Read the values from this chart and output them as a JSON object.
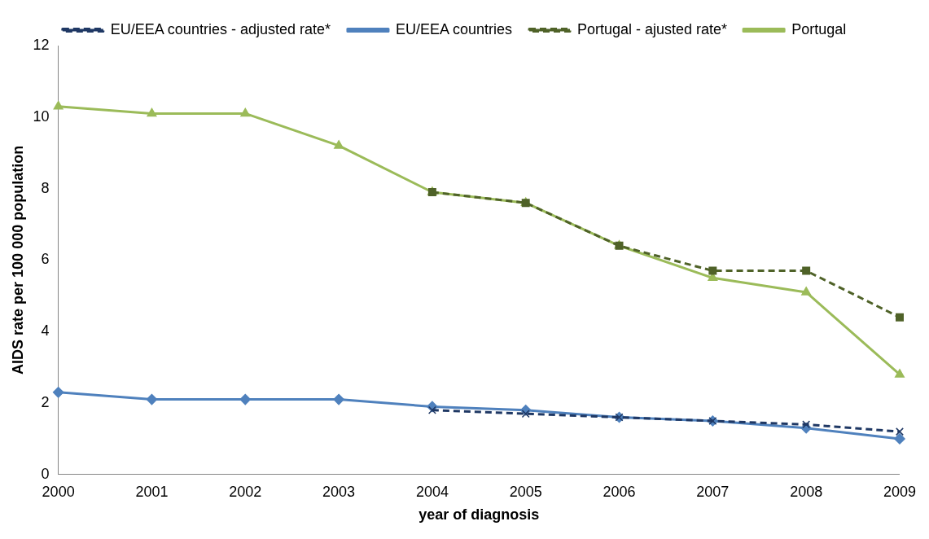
{
  "chart_data": {
    "type": "line",
    "xlabel": "year of diagnosis",
    "ylabel": "AIDS rate per 100 000 population",
    "categories": [
      "2000",
      "2001",
      "2002",
      "2003",
      "2004",
      "2005",
      "2006",
      "2007",
      "2008",
      "2009"
    ],
    "ylim": [
      0,
      12
    ],
    "yticks": [
      0,
      2,
      4,
      6,
      8,
      10,
      12
    ],
    "grid": false,
    "legend": "top",
    "series": [
      {
        "name": "Portugal",
        "color": "#9bbb59",
        "marker": "triangle",
        "line_style": "solid",
        "values": [
          10.3,
          10.1,
          10.1,
          9.2,
          7.9,
          7.6,
          6.4,
          5.5,
          5.1,
          2.8
        ]
      },
      {
        "name": "Portugal - ajusted rate*",
        "color": "#4f6228",
        "marker": "square",
        "line_style": "dashed",
        "values": [
          null,
          null,
          null,
          null,
          7.9,
          7.6,
          6.4,
          5.7,
          5.7,
          4.4
        ]
      },
      {
        "name": "EU/EEA countries",
        "color": "#4f81bd",
        "marker": "diamond",
        "line_style": "solid",
        "values": [
          2.3,
          2.1,
          2.1,
          2.1,
          1.9,
          1.8,
          1.6,
          1.5,
          1.3,
          1.0
        ]
      },
      {
        "name": "EU/EEA countries - adjusted rate*",
        "color": "#1f3864",
        "marker": "cross",
        "line_style": "dashed",
        "values": [
          null,
          null,
          null,
          null,
          1.8,
          1.7,
          1.6,
          1.5,
          1.4,
          1.2
        ]
      }
    ]
  }
}
